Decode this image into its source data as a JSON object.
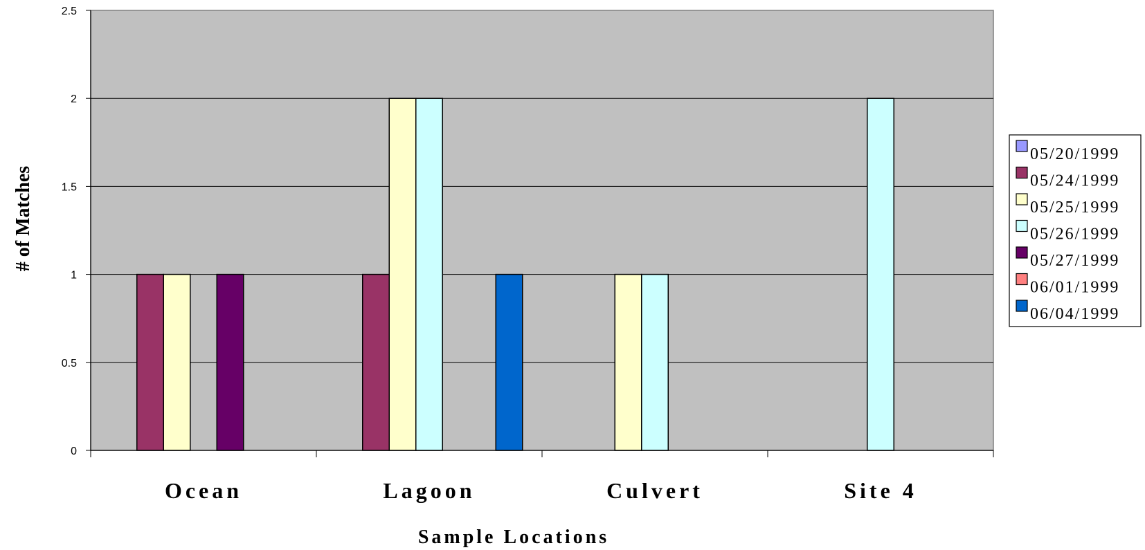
{
  "chart_data": {
    "type": "bar",
    "title": "",
    "xlabel": "Sample Locations",
    "ylabel": "# of Matches",
    "ylim": [
      0,
      2.5
    ],
    "yticks": [
      "0",
      "0.5",
      "1",
      "1.5",
      "2",
      "2.5"
    ],
    "categories": [
      "Ocean",
      "Lagoon",
      "Culvert",
      "Site 4"
    ],
    "grid": true,
    "legend_position": "right",
    "series": [
      {
        "name": "05/20/1999",
        "color": "#9999ff",
        "values": [
          0,
          0,
          0,
          0
        ]
      },
      {
        "name": "05/24/1999",
        "color": "#993366",
        "values": [
          1,
          1,
          0,
          0
        ]
      },
      {
        "name": "05/25/1999",
        "color": "#ffffcc",
        "values": [
          1,
          2,
          1,
          0
        ]
      },
      {
        "name": "05/26/1999",
        "color": "#ccffff",
        "values": [
          0,
          2,
          1,
          2
        ]
      },
      {
        "name": "05/27/1999",
        "color": "#660066",
        "values": [
          1,
          0,
          0,
          0
        ]
      },
      {
        "name": "06/01/1999",
        "color": "#ff8080",
        "values": [
          0,
          0,
          0,
          0
        ]
      },
      {
        "name": "06/04/1999",
        "color": "#0066cc",
        "values": [
          0,
          1,
          0,
          0
        ]
      }
    ],
    "plot_background": "#c0c0c0"
  }
}
